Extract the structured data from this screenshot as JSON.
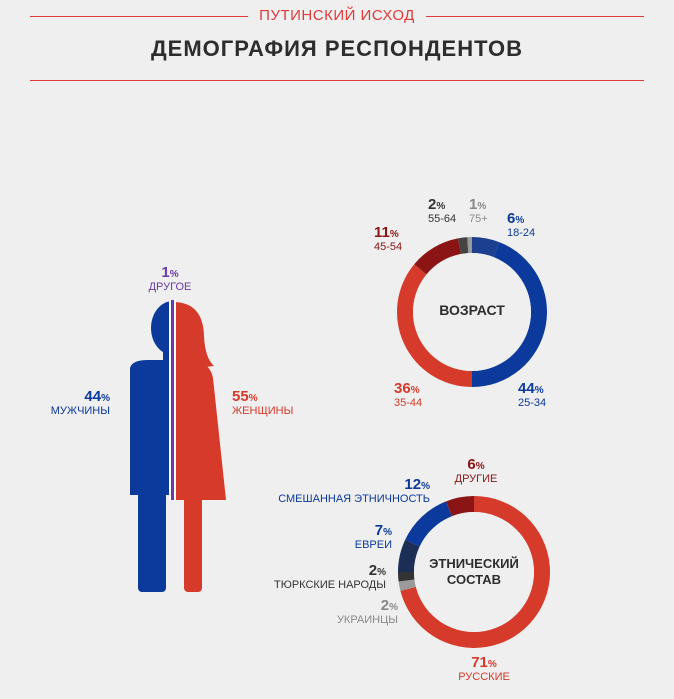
{
  "header": {
    "kicker": "ПУТИНСКИЙ ИСХОД",
    "title": "ДЕМОГРАФИЯ РЕСПОНДЕНТОВ"
  },
  "colors": {
    "blue": "#0b3a9c",
    "red": "#d63a2b",
    "dark_red": "#8b1414",
    "dark_navy": "#1c2e55",
    "dark_gray": "#444444",
    "gray": "#9a9a9a",
    "accent_line": "#e03a3a"
  },
  "chart_data": [
    {
      "type": "pie",
      "variant": "pictogram",
      "categories": [
        "МУЖЧИНЫ",
        "ЖЕНЩИНЫ",
        "ДРУГОЕ"
      ],
      "values": [
        44,
        55,
        1
      ],
      "unit": "%",
      "labels": [
        {
          "pct": "44",
          "name": "МУЖЧИНЫ"
        },
        {
          "pct": "55",
          "name": "ЖЕНЩИНЫ"
        },
        {
          "pct": "1",
          "name": "ДРУГОЕ"
        }
      ]
    },
    {
      "type": "pie",
      "variant": "donut",
      "center_label": "ВОЗРАСТ",
      "categories": [
        "18-24",
        "25-34",
        "35-44",
        "45-54",
        "55-64",
        "75+"
      ],
      "values": [
        6,
        44,
        36,
        11,
        2,
        1
      ],
      "unit": "%",
      "colors": [
        "#1c3f8f",
        "#0b3a9c",
        "#d63a2b",
        "#8b1414",
        "#444444",
        "#9a9a9a"
      ]
    },
    {
      "type": "pie",
      "variant": "donut",
      "center_label_lines": [
        "ЭТНИЧЕСКИЙ",
        "СОСТАВ"
      ],
      "categories": [
        "РУССКИЕ",
        "УКРАИНЦЫ",
        "ТЮРКСКИЕ НАРОДЫ",
        "ЕВРЕИ",
        "СМЕШАННАЯ ЭТНИЧНОСТЬ",
        "ДРУГИЕ"
      ],
      "values": [
        71,
        2,
        2,
        7,
        12,
        6
      ],
      "unit": "%",
      "colors": [
        "#d63a2b",
        "#9a9a9a",
        "#333333",
        "#1c2e55",
        "#0b3a9c",
        "#8b1414"
      ]
    }
  ]
}
